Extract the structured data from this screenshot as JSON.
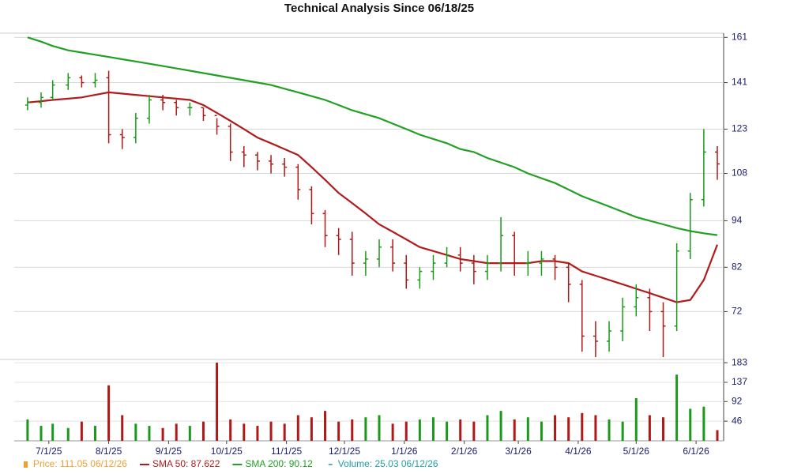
{
  "chart_data": {
    "type": "ohlc",
    "title": "Technical Analysis Since 06/18/25",
    "x": [
      "6/20/25",
      "6/27/25",
      "7/3/25",
      "7/11/25",
      "7/18/25",
      "7/25/25",
      "8/1/25",
      "8/8/25",
      "8/15/25",
      "8/22/25",
      "8/29/25",
      "9/5/25",
      "9/12/25",
      "9/19/25",
      "9/26/25",
      "10/3/25",
      "10/10/25",
      "10/17/25",
      "10/24/25",
      "10/31/25",
      "11/7/25",
      "11/14/25",
      "11/21/25",
      "11/28/25",
      "12/5/25",
      "12/12/25",
      "12/19/25",
      "12/26/25",
      "1/2/26",
      "1/9/26",
      "1/16/26",
      "1/23/26",
      "1/30/26",
      "2/6/26",
      "2/13/26",
      "2/20/26",
      "2/27/26",
      "3/6/26",
      "3/13/26",
      "3/20/26",
      "3/27/26",
      "4/3/26",
      "4/10/26",
      "4/17/26",
      "4/24/26",
      "5/1/26",
      "5/8/26",
      "5/15/26",
      "5/22/26",
      "5/29/26",
      "6/5/26",
      "6/12/26"
    ],
    "open": [
      132,
      133,
      135,
      140,
      143,
      141,
      143,
      121,
      120,
      127,
      134,
      133,
      131,
      131,
      128,
      124,
      115,
      114,
      112,
      111,
      110,
      103,
      96,
      90,
      89,
      83,
      84,
      87,
      83,
      79,
      81,
      83,
      85,
      83,
      81,
      83,
      90,
      83,
      83,
      84,
      82,
      78,
      67,
      66,
      68,
      73,
      75,
      72,
      69,
      86,
      100,
      115
    ],
    "high": [
      135,
      137,
      142,
      145,
      144,
      145,
      146,
      123,
      129,
      136,
      136,
      134,
      133,
      131,
      127,
      125,
      117,
      115,
      114,
      113,
      111,
      104,
      97,
      92,
      91,
      86,
      89,
      89,
      85,
      82,
      85,
      87,
      87,
      85,
      85,
      95,
      91,
      86,
      86,
      85,
      83,
      79,
      70,
      70,
      75,
      78,
      77,
      74,
      88,
      102,
      123,
      117
    ],
    "low": [
      130,
      131,
      134,
      138,
      139,
      139,
      118,
      116,
      118,
      125,
      130,
      128,
      128,
      126,
      121,
      112,
      110,
      109,
      108,
      107,
      100,
      93,
      87,
      85,
      80,
      80,
      82,
      81,
      77,
      77,
      79,
      82,
      81,
      78,
      79,
      81,
      80,
      80,
      80,
      79,
      74,
      64,
      63,
      64,
      66,
      71,
      68,
      63,
      68,
      84,
      98,
      106
    ],
    "close": [
      133,
      135,
      140,
      143,
      141,
      142,
      121,
      120,
      127,
      134,
      133,
      131,
      131,
      128,
      124,
      115,
      114,
      112,
      111,
      110,
      103,
      96,
      90,
      89,
      83,
      84,
      87,
      83,
      79,
      81,
      83,
      85,
      83,
      81,
      83,
      90,
      83,
      83,
      84,
      82,
      78,
      67,
      66,
      68,
      73,
      75,
      72,
      69,
      86,
      100,
      115,
      111.05
    ],
    "up_color": "#1a9a1a",
    "down_color": "#b01818",
    "xlim": [
      "6/18/25",
      "6/12/26"
    ],
    "xticks": [
      "7/1/25",
      "8/1/25",
      "9/1/25",
      "10/1/25",
      "11/1/25",
      "12/1/25",
      "1/1/26",
      "2/1/26",
      "3/1/26",
      "4/1/26",
      "5/1/26",
      "6/1/26"
    ],
    "ylim": [
      63,
      163
    ],
    "yticks": [
      161,
      141,
      123,
      108,
      94,
      82,
      72
    ],
    "log_scale": true,
    "grid": true,
    "overlays": [
      {
        "color": "#b01c1c",
        "values": [
          133,
          133.5,
          134,
          134.5,
          135,
          136,
          137,
          136.5,
          136,
          135.5,
          135,
          134.5,
          134,
          132,
          129,
          126,
          123,
          120,
          118,
          116,
          114,
          110,
          106,
          102,
          99,
          96,
          93,
          91,
          89,
          87,
          86,
          85,
          84,
          83.5,
          83,
          83,
          83,
          83,
          83.5,
          83.5,
          83,
          81,
          80,
          79,
          78,
          77,
          76,
          75,
          74,
          74.5,
          79,
          87.622
        ]
      },
      {
        "color": "#22a022",
        "values": [
          161,
          159,
          157,
          155,
          154,
          153,
          152,
          151,
          150,
          149,
          148,
          147,
          146,
          145,
          144,
          143,
          142,
          141,
          140,
          138.5,
          137,
          135.5,
          134,
          132,
          130,
          128.5,
          127,
          125,
          123,
          121,
          119.5,
          118,
          116,
          115,
          113,
          111.5,
          110,
          108,
          106.5,
          105,
          103,
          101,
          99.5,
          98,
          96.5,
          95,
          94,
          93,
          92,
          91.2,
          90.6,
          90.12
        ]
      }
    ],
    "volume": {
      "values": [
        50,
        35,
        40,
        30,
        45,
        35,
        130,
        60,
        40,
        35,
        30,
        40,
        35,
        45,
        183,
        50,
        40,
        35,
        45,
        40,
        60,
        55,
        70,
        45,
        50,
        55,
        60,
        40,
        45,
        50,
        55,
        45,
        50,
        45,
        60,
        70,
        50,
        55,
        45,
        60,
        55,
        65,
        60,
        50,
        45,
        100,
        60,
        55,
        155,
        75,
        80,
        25.03
      ],
      "ylim": [
        0,
        185
      ],
      "yticks": [
        46,
        92,
        137,
        183
      ]
    },
    "legend": {
      "position": "bottom",
      "items": [
        {
          "label": "Price: 111.05 06/12/26",
          "color": "#f0a030",
          "marker": "square"
        },
        {
          "label": "SMA 50: 87.622",
          "color": "#b01c1c",
          "marker": "line"
        },
        {
          "label": "SMA 200: 90.12",
          "color": "#22a022",
          "marker": "line"
        },
        {
          "label": "Volume: 25.03 06/12/26",
          "color": "#20a0a0",
          "marker": "dash"
        }
      ]
    }
  }
}
